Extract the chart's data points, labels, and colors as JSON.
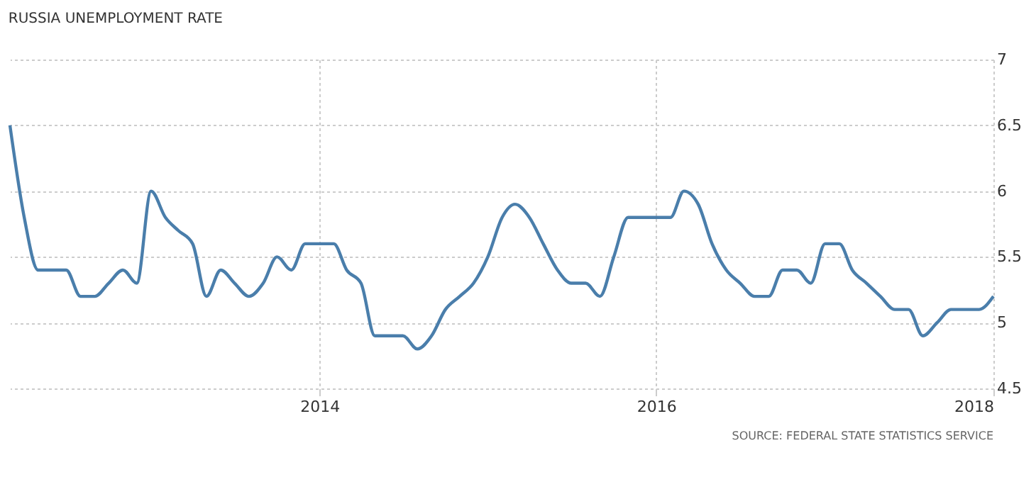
{
  "chart_data": {
    "type": "line",
    "title": "RUSSIA UNEMPLOYMENT RATE",
    "x": [
      "2012-03",
      "2012-04",
      "2012-05",
      "2012-06",
      "2012-07",
      "2012-08",
      "2012-09",
      "2012-10",
      "2012-11",
      "2012-12",
      "2013-01",
      "2013-02",
      "2013-03",
      "2013-04",
      "2013-05",
      "2013-06",
      "2013-07",
      "2013-08",
      "2013-09",
      "2013-10",
      "2013-11",
      "2013-12",
      "2014-01",
      "2014-02",
      "2014-03",
      "2014-04",
      "2014-05",
      "2014-06",
      "2014-07",
      "2014-08",
      "2014-09",
      "2014-10",
      "2014-11",
      "2014-12",
      "2015-01",
      "2015-02",
      "2015-03",
      "2015-04",
      "2015-05",
      "2015-06",
      "2015-07",
      "2015-08",
      "2015-09",
      "2015-10",
      "2015-11",
      "2015-12",
      "2016-01",
      "2016-02",
      "2016-03",
      "2016-04",
      "2016-05",
      "2016-06",
      "2016-07",
      "2016-08",
      "2016-09",
      "2016-10",
      "2016-11",
      "2016-12",
      "2017-01",
      "2017-02",
      "2017-03",
      "2017-04",
      "2017-05",
      "2017-06",
      "2017-07",
      "2017-08",
      "2017-09",
      "2017-10",
      "2017-11",
      "2017-12",
      "2018-01"
    ],
    "series": [
      {
        "color": "#4a7eab",
        "values": [
          6.5,
          5.8,
          5.4,
          5.4,
          5.4,
          5.2,
          5.2,
          5.3,
          5.4,
          5.3,
          6.0,
          5.8,
          5.7,
          5.6,
          5.2,
          5.4,
          5.3,
          5.2,
          5.3,
          5.5,
          5.4,
          5.6,
          5.6,
          5.6,
          5.4,
          5.3,
          4.9,
          4.9,
          4.9,
          4.8,
          4.9,
          5.1,
          5.2,
          5.3,
          5.5,
          5.8,
          5.9,
          5.8,
          5.6,
          5.4,
          5.3,
          5.3,
          5.2,
          5.5,
          5.8,
          5.8,
          5.8,
          5.8,
          6.0,
          5.9,
          5.6,
          5.4,
          5.3,
          5.2,
          5.2,
          5.4,
          5.4,
          5.3,
          5.6,
          5.6,
          5.4,
          5.3,
          5.2,
          5.1,
          5.1,
          4.9,
          5.0,
          5.1,
          5.1,
          5.1,
          5.2
        ]
      }
    ],
    "xlim": [
      "2012-03",
      "2018-01"
    ],
    "xticks": [
      "2014",
      "2016",
      "2018"
    ],
    "ylim": [
      4.5,
      7
    ],
    "yticks": [
      4.5,
      5,
      5.5,
      6,
      6.5,
      7
    ],
    "grid": true,
    "legend": false,
    "marker": "none",
    "line_style": "solid",
    "annotations": [
      "SOURCE: FEDERAL STATE STATISTICS SERVICE"
    ]
  }
}
